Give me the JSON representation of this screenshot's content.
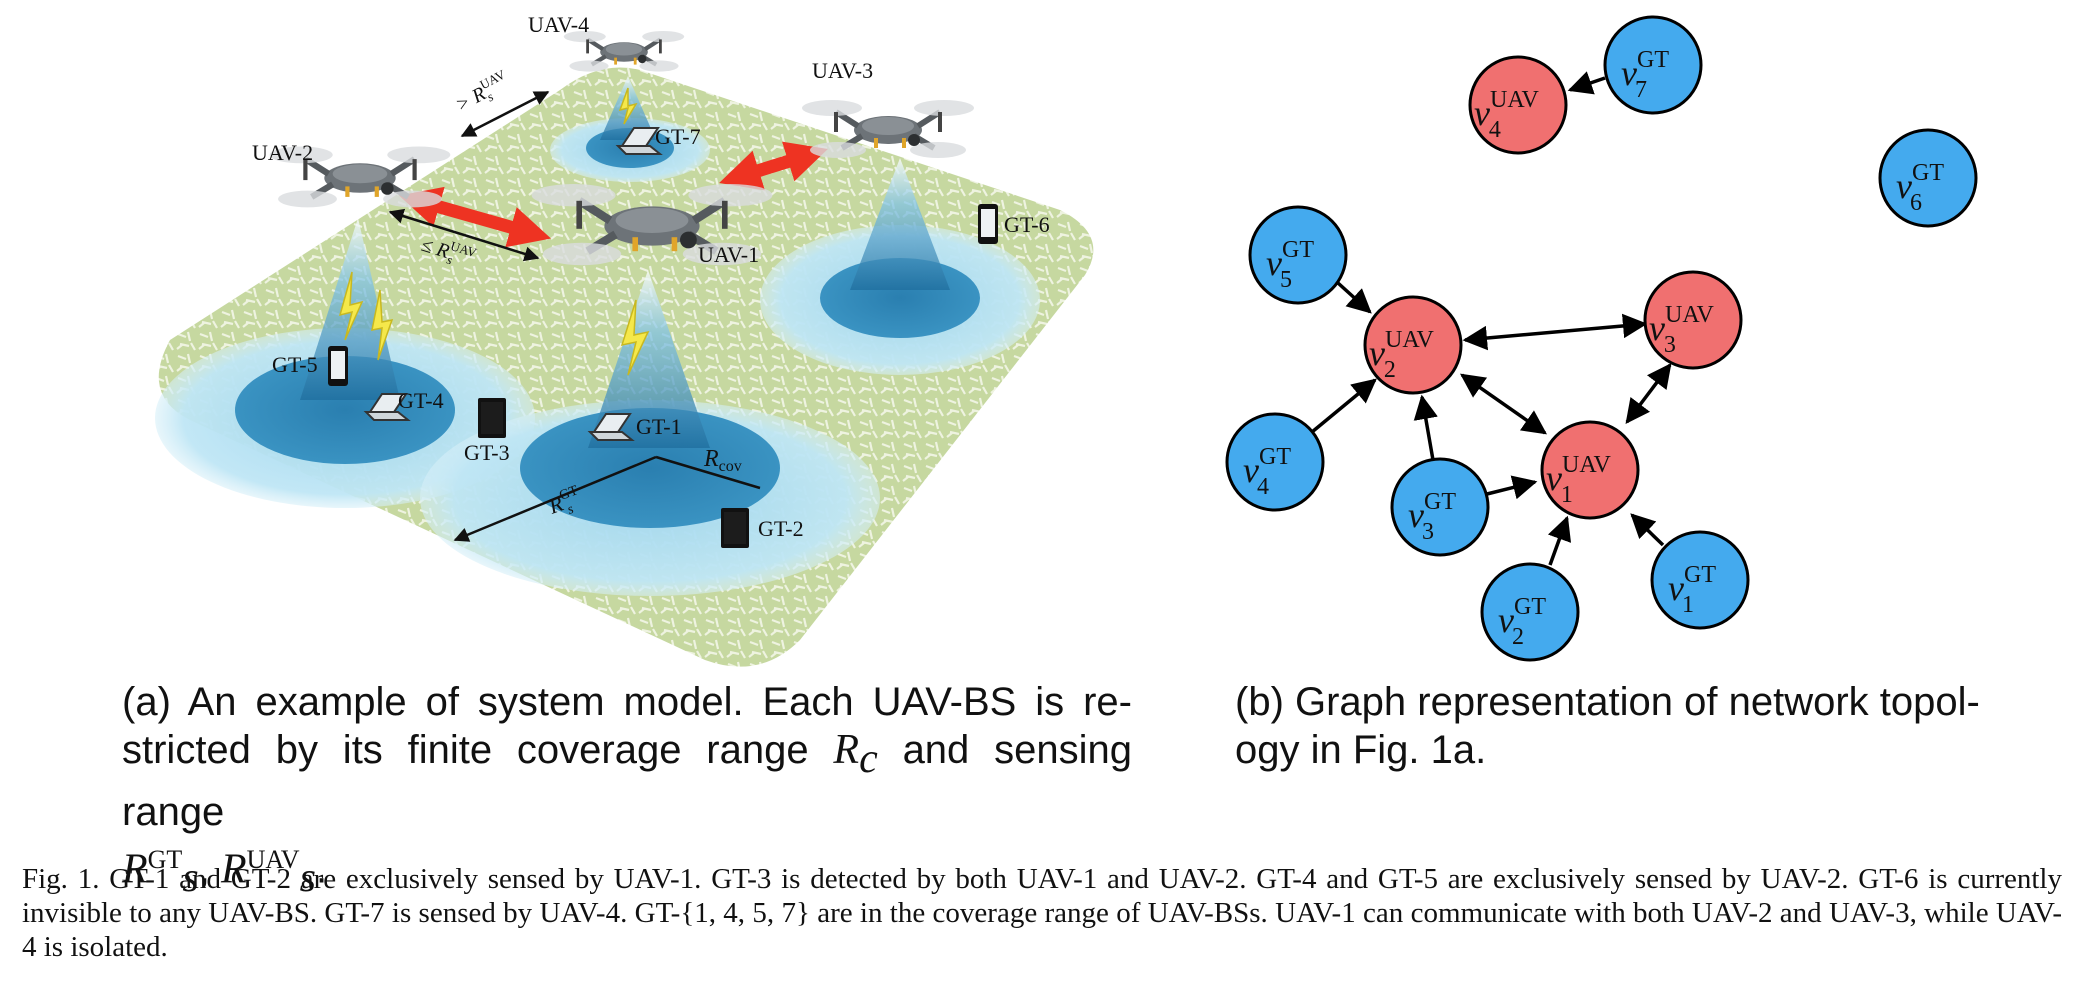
{
  "panel_a": {
    "labels": {
      "uav1": "UAV-1",
      "uav2": "UAV-2",
      "uav3": "UAV-3",
      "uav4": "UAV-4",
      "gt1": "GT-1",
      "gt2": "GT-2",
      "gt3": "GT-3",
      "gt4": "GT-4",
      "gt5": "GT-5",
      "gt6": "GT-6",
      "gt7": "GT-7",
      "r_cov": "R",
      "r_cov_sub": "cov",
      "r_gt": "R",
      "r_gt_sup": "GT",
      "r_gt_sub": "s",
      "r_uav_le": "≤ R",
      "r_uav_gt": "> R",
      "r_uav_sup": "UAV",
      "r_uav_sub": "s"
    },
    "caption": {
      "prefix": "(a) An example of system model. Each UAV-BS is re-stricted by its finite coverage range",
      "rc": "R",
      "rc_sub": "c",
      "middle": "and sensing range",
      "r1": "R",
      "r1_sub": "s",
      "r1_sup": "GT",
      "sep": ",",
      "r2": "R",
      "r2_sub": "s",
      "r2_sup": "UAV",
      "end": "."
    }
  },
  "panel_b": {
    "nodes": {
      "uav1": {
        "base": "v",
        "sup": "UAV",
        "sub": "1"
      },
      "uav2": {
        "base": "v",
        "sup": "UAV",
        "sub": "2"
      },
      "uav3": {
        "base": "v",
        "sup": "UAV",
        "sub": "3"
      },
      "uav4": {
        "base": "v",
        "sup": "UAV",
        "sub": "4"
      },
      "gt1": {
        "base": "v",
        "sup": "GT",
        "sub": "1"
      },
      "gt2": {
        "base": "v",
        "sup": "GT",
        "sub": "2"
      },
      "gt3": {
        "base": "v",
        "sup": "GT",
        "sub": "3"
      },
      "gt4": {
        "base": "v",
        "sup": "GT",
        "sub": "4"
      },
      "gt5": {
        "base": "v",
        "sup": "GT",
        "sub": "5"
      },
      "gt6": {
        "base": "v",
        "sup": "GT",
        "sub": "6"
      },
      "gt7": {
        "base": "v",
        "sup": "GT",
        "sub": "7"
      }
    },
    "caption": "(b) Graph representation of network topol-ogy in Fig. 1a."
  },
  "figure_caption": "Fig. 1.   GT-1 and GT-2 are exclusively sensed by UAV-1. GT-3 is detected by both UAV-1 and UAV-2. GT-4 and GT-5 are exclusively sensed by UAV-2. GT-6 is currently invisible to any UAV-BS. GT-7 is sensed by UAV-4. GT-{1, 4, 5, 7} are in the coverage range of UAV-BSs. UAV-1 can communicate with both UAV-2 and UAV-3, while UAV-4 is isolated.",
  "colors": {
    "uav_node": "#f07070",
    "gt_node": "#44aaee",
    "ground": "#c7d9a3",
    "coverage_outer": "#aadcf2",
    "coverage_inner": "#2f87b8",
    "link_arrow": "#ee3322",
    "lightning": "#f5e84a"
  }
}
